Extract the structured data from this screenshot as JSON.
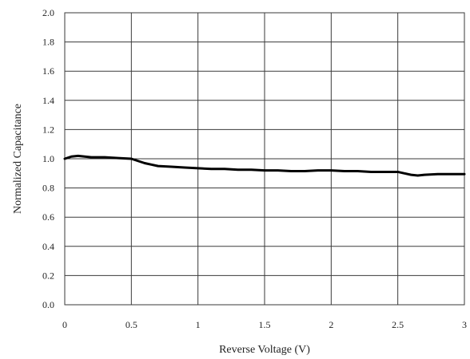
{
  "chart_data": {
    "type": "line",
    "title": "",
    "xlabel": "Reverse Voltage (V)",
    "ylabel": "Normalized Capacitance",
    "xlim": [
      0,
      3
    ],
    "ylim": [
      0,
      2
    ],
    "x_ticks": [
      0,
      0.5,
      1,
      1.5,
      2,
      2.5,
      3
    ],
    "x_tick_labels": [
      "0",
      "0.5",
      "1",
      "1.5",
      "2",
      "2.5",
      "3"
    ],
    "y_ticks": [
      0,
      0.2,
      0.4,
      0.6,
      0.8,
      1.0,
      1.2,
      1.4,
      1.6,
      1.8,
      2.0
    ],
    "y_tick_labels": [
      "0.0",
      "0.2",
      "0.4",
      "0.6",
      "0.8",
      "1.0",
      "1.2",
      "1.4",
      "1.6",
      "1.8",
      "2.0"
    ],
    "grid": true,
    "legend": "none",
    "series": [
      {
        "color": "#000000",
        "x": [
          0,
          0.05,
          0.1,
          0.15,
          0.2,
          0.3,
          0.4,
          0.5,
          0.55,
          0.6,
          0.65,
          0.7,
          0.8,
          0.9,
          1.0,
          1.1,
          1.2,
          1.3,
          1.4,
          1.5,
          1.6,
          1.7,
          1.8,
          1.9,
          2.0,
          2.1,
          2.2,
          2.3,
          2.4,
          2.5,
          2.55,
          2.6,
          2.65,
          2.7,
          2.8,
          2.9,
          3.0
        ],
        "y": [
          1.0,
          1.015,
          1.02,
          1.015,
          1.01,
          1.01,
          1.005,
          1.0,
          0.985,
          0.97,
          0.96,
          0.95,
          0.945,
          0.94,
          0.935,
          0.93,
          0.93,
          0.925,
          0.925,
          0.92,
          0.92,
          0.915,
          0.915,
          0.92,
          0.92,
          0.915,
          0.915,
          0.91,
          0.91,
          0.91,
          0.9,
          0.89,
          0.885,
          0.89,
          0.895,
          0.895,
          0.895
        ]
      }
    ]
  }
}
